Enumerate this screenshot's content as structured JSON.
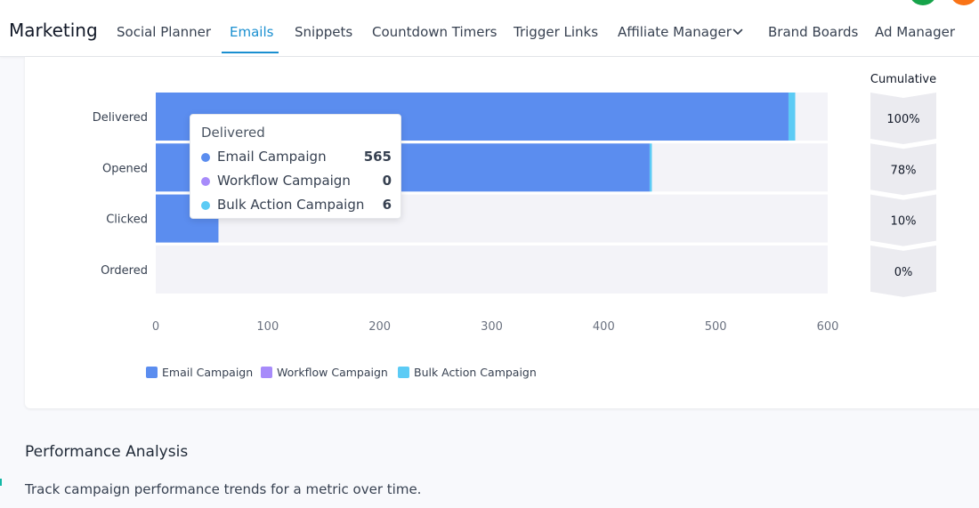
{
  "header": {
    "title": "Marketing",
    "tabs": [
      {
        "label": "Social Planner"
      },
      {
        "label": "Emails"
      },
      {
        "label": "Snippets"
      },
      {
        "label": "Countdown Timers"
      },
      {
        "label": "Trigger Links"
      },
      {
        "label": "Affiliate Manager"
      },
      {
        "label": "Brand Boards"
      },
      {
        "label": "Ad Manager"
      }
    ],
    "active_tab": "Emails",
    "affiliate_chevron_icon": "chevron-down-icon",
    "avatar_colors": [
      "#16a34a",
      "#f97316"
    ]
  },
  "chart_data": {
    "type": "bar",
    "orientation": "horizontal",
    "stacked": true,
    "categories": [
      "Delivered",
      "Opened",
      "Clicked",
      "Ordered"
    ],
    "series": [
      {
        "name": "Email Campaign",
        "color": "#5b8def",
        "values": [
          565,
          441,
          56,
          0
        ]
      },
      {
        "name": "Workflow Campaign",
        "color": "#a78bfa",
        "values": [
          0,
          0,
          0,
          0
        ]
      },
      {
        "name": "Bulk Action Campaign",
        "color": "#5ccbf5",
        "values": [
          6,
          2,
          0,
          0
        ]
      }
    ],
    "xlim": [
      0,
      600
    ],
    "xticks": [
      "0",
      "100",
      "200",
      "300",
      "400",
      "500",
      "600"
    ],
    "cumulative_title": "Cumulative",
    "cumulative": [
      "100%",
      "78%",
      "10%",
      "0%"
    ],
    "legend_position": "bottom-left",
    "tooltip": {
      "title": "Delivered",
      "rows": [
        {
          "name": "Email Campaign",
          "value": "565",
          "color": "#5b8def"
        },
        {
          "name": "Workflow Campaign",
          "value": "0",
          "color": "#a78bfa"
        },
        {
          "name": "Bulk Action Campaign",
          "value": "6",
          "color": "#5ccbf5"
        }
      ]
    }
  },
  "section": {
    "title": "Performance Analysis",
    "description": "Track campaign performance trends for a metric over time."
  }
}
